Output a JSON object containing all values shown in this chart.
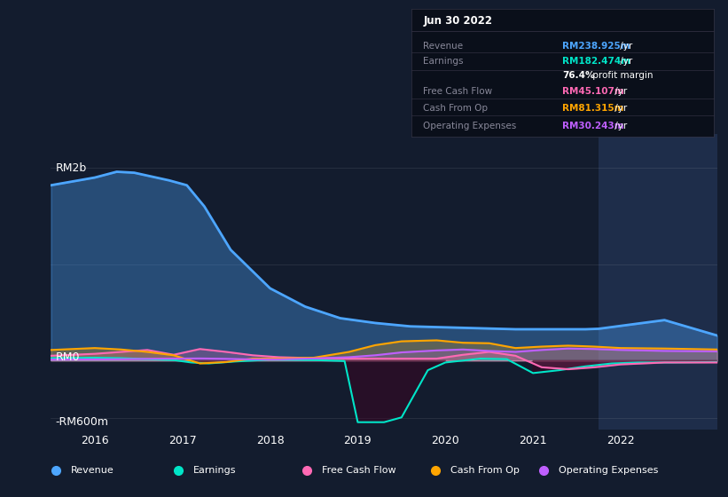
{
  "bg_color": "#131c2e",
  "plot_bg_color": "#131c2e",
  "highlight_bg": "#1e2d4a",
  "title_box": "Jun 30 2022",
  "ylabel_top": "RM2b",
  "ylabel_zero": "RM0",
  "ylabel_bot": "-RM600m",
  "xlim": [
    2015.5,
    2023.1
  ],
  "ylim": [
    -720,
    2350
  ],
  "xticks": [
    2016,
    2017,
    2018,
    2019,
    2020,
    2021,
    2022
  ],
  "highlight_x_start": 2021.75,
  "highlight_x_end": 2023.1,
  "legend": [
    {
      "label": "Revenue",
      "color": "#4da6ff"
    },
    {
      "label": "Earnings",
      "color": "#00e5c8"
    },
    {
      "label": "Free Cash Flow",
      "color": "#ff69b4"
    },
    {
      "label": "Cash From Op",
      "color": "#ffa500"
    },
    {
      "label": "Operating Expenses",
      "color": "#bf5fff"
    }
  ],
  "table_rows": [
    {
      "label": "Revenue",
      "value": "RM238.925m",
      "suffix": " /yr",
      "color": "#4da6ff",
      "bold": true,
      "divider_above": true
    },
    {
      "label": "Earnings",
      "value": "RM182.474m",
      "suffix": " /yr",
      "color": "#00e5c8",
      "bold": true,
      "divider_above": true
    },
    {
      "label": "",
      "value": "76.4%",
      "suffix": " profit margin",
      "color": "#ffffff",
      "bold": true,
      "divider_above": false
    },
    {
      "label": "Free Cash Flow",
      "value": "RM45.107m",
      "suffix": " /yr",
      "color": "#ff69b4",
      "bold": true,
      "divider_above": true
    },
    {
      "label": "Cash From Op",
      "value": "RM81.315m",
      "suffix": " /yr",
      "color": "#ffa500",
      "bold": true,
      "divider_above": true
    },
    {
      "label": "Operating Expenses",
      "value": "RM30.243m",
      "suffix": " /yr",
      "color": "#bf5fff",
      "bold": true,
      "divider_above": true
    }
  ],
  "series": {
    "Revenue": {
      "color": "#4da6ff",
      "fill_alpha": 0.35,
      "line_width": 2.0,
      "x": [
        2015.5,
        2016.0,
        2016.25,
        2016.45,
        2016.65,
        2016.85,
        2017.05,
        2017.25,
        2017.55,
        2018.0,
        2018.4,
        2018.8,
        2019.2,
        2019.6,
        2020.0,
        2020.4,
        2020.8,
        2021.2,
        2021.6,
        2021.75,
        2022.0,
        2022.5,
        2023.1
      ],
      "y": [
        1820,
        1900,
        1960,
        1950,
        1910,
        1870,
        1820,
        1600,
        1150,
        750,
        560,
        440,
        390,
        355,
        345,
        335,
        325,
        325,
        325,
        330,
        360,
        420,
        260
      ]
    },
    "Earnings": {
      "color": "#00e5c8",
      "fill_alpha": 0.0,
      "line_width": 1.5,
      "x": [
        2015.5,
        2016.0,
        2016.3,
        2016.6,
        2016.9,
        2017.1,
        2017.3,
        2017.6,
        2018.0,
        2018.5,
        2018.85,
        2019.0,
        2019.3,
        2019.5,
        2019.8,
        2020.0,
        2020.4,
        2020.7,
        2021.0,
        2021.3,
        2021.6,
        2021.9,
        2022.2,
        2022.6,
        2023.1
      ],
      "y": [
        25,
        30,
        25,
        15,
        5,
        -20,
        -30,
        -10,
        10,
        5,
        -5,
        -640,
        -640,
        -590,
        -100,
        -20,
        20,
        15,
        -130,
        -100,
        -60,
        -30,
        -20,
        -20,
        -15
      ]
    },
    "Free Cash Flow": {
      "color": "#ff69b4",
      "fill_alpha": 0.25,
      "line_width": 1.5,
      "x": [
        2015.5,
        2016.0,
        2016.3,
        2016.6,
        2016.9,
        2017.2,
        2017.5,
        2017.8,
        2018.1,
        2018.5,
        2018.9,
        2019.2,
        2019.5,
        2019.9,
        2020.2,
        2020.5,
        2020.8,
        2021.1,
        2021.4,
        2021.7,
        2022.0,
        2022.5,
        2023.1
      ],
      "y": [
        50,
        70,
        90,
        110,
        60,
        120,
        90,
        55,
        35,
        25,
        20,
        20,
        20,
        20,
        60,
        90,
        50,
        -70,
        -90,
        -70,
        -40,
        -20,
        -20
      ]
    },
    "Cash From Op": {
      "color": "#ffa500",
      "fill_alpha": 0.25,
      "line_width": 1.5,
      "x": [
        2015.5,
        2016.0,
        2016.3,
        2016.6,
        2016.9,
        2017.2,
        2017.5,
        2017.8,
        2018.1,
        2018.5,
        2018.9,
        2019.2,
        2019.5,
        2019.9,
        2020.2,
        2020.5,
        2020.8,
        2021.1,
        2021.4,
        2021.7,
        2022.0,
        2022.5,
        2023.1
      ],
      "y": [
        110,
        130,
        115,
        90,
        55,
        -30,
        -15,
        20,
        20,
        30,
        90,
        160,
        200,
        210,
        185,
        180,
        130,
        145,
        155,
        145,
        130,
        125,
        115
      ]
    },
    "Operating Expenses": {
      "color": "#bf5fff",
      "fill_alpha": 0.2,
      "line_width": 1.5,
      "x": [
        2015.5,
        2016.0,
        2016.3,
        2016.6,
        2016.9,
        2017.2,
        2017.5,
        2017.8,
        2018.1,
        2018.5,
        2018.9,
        2019.2,
        2019.5,
        2019.9,
        2020.2,
        2020.5,
        2020.8,
        2021.1,
        2021.4,
        2021.7,
        2022.0,
        2022.5,
        2023.1
      ],
      "y": [
        10,
        12,
        14,
        18,
        20,
        22,
        18,
        12,
        12,
        22,
        35,
        55,
        85,
        105,
        115,
        100,
        90,
        110,
        125,
        120,
        110,
        100,
        95
      ]
    }
  }
}
